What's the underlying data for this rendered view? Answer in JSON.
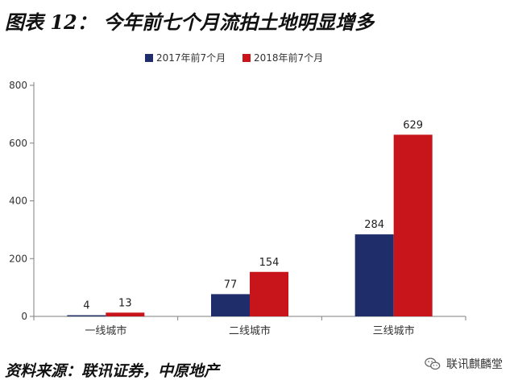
{
  "title": "图表 12： 今年前七个月流拍土地明显增多",
  "source": "资料来源：联讯证券，中原地产",
  "watermark": {
    "text": "联讯麒麟堂",
    "icon": "wechat-icon"
  },
  "colors": {
    "series_2017": "#1f2d6b",
    "series_2018": "#c8151b",
    "axis": "#7f7f7f"
  },
  "chart_data": {
    "type": "bar",
    "categories": [
      "一线城市",
      "二线城市",
      "三线城市"
    ],
    "series": [
      {
        "name": "2017年前7个月",
        "values": [
          4,
          77,
          284
        ]
      },
      {
        "name": "2018年前7个月",
        "values": [
          13,
          154,
          629
        ]
      }
    ],
    "yticks": [
      "0",
      "200",
      "400",
      "600",
      "800"
    ],
    "ylim": [
      0,
      800
    ],
    "title": "",
    "xlabel": "",
    "ylabel": "",
    "grid": false,
    "legend_position": "top-center",
    "data_labels": true
  }
}
